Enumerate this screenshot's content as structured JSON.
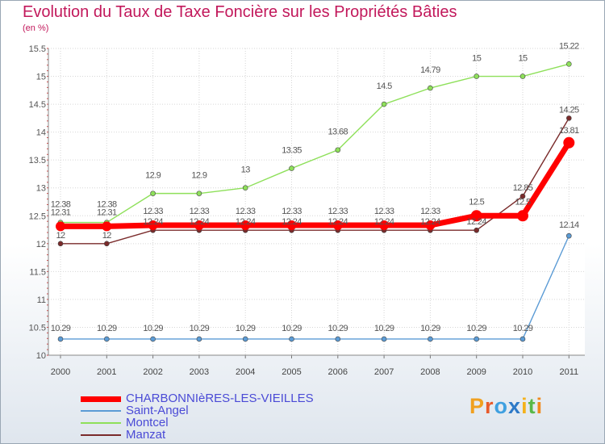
{
  "header": {
    "title": "Evolution du Taux de Taxe Foncière sur les Propriétés Bâties",
    "unit": "(en %)"
  },
  "logo": {
    "text": "Proxiti"
  },
  "chart_data": {
    "type": "line",
    "title": "Evolution du Taux de Taxe Foncière sur les Propriétés Bâties",
    "ylabel": "(en %)",
    "xlabel": "",
    "x": [
      "2000",
      "2001",
      "2002",
      "2003",
      "2004",
      "2005",
      "2006",
      "2007",
      "2008",
      "2009",
      "2010",
      "2011"
    ],
    "ylim": [
      10,
      15.5
    ],
    "yticks": [
      "10",
      "10.5",
      "11",
      "11.5",
      "12",
      "12.5",
      "13",
      "13.5",
      "14",
      "14.5",
      "15",
      "15.5"
    ],
    "grid": true,
    "legend_position": "bottom-left",
    "series": [
      {
        "name": "CHARBONNIèRES-LES-VIEILLES",
        "color": "#ff0000",
        "values": [
          12.31,
          12.31,
          12.33,
          12.33,
          12.33,
          12.33,
          12.33,
          12.33,
          12.33,
          12.5,
          12.5,
          13.81
        ],
        "labels": [
          "12.31",
          "12.31",
          "12.33",
          "12.33",
          "12.33",
          "12.33",
          "12.33",
          "12.33",
          "12.33",
          "12.5",
          "12.5",
          "13.81"
        ]
      },
      {
        "name": "Saint-Angel",
        "color": "#5b9bd5",
        "values": [
          10.29,
          10.29,
          10.29,
          10.29,
          10.29,
          10.29,
          10.29,
          10.29,
          10.29,
          10.29,
          10.29,
          12.14
        ],
        "labels": [
          "10.29",
          "10.29",
          "10.29",
          "10.29",
          "10.29",
          "10.29",
          "10.29",
          "10.29",
          "10.29",
          "10.29",
          "10.29",
          "12.14"
        ]
      },
      {
        "name": "Montcel",
        "color": "#8ee05a",
        "values": [
          12.38,
          12.38,
          12.9,
          12.9,
          13,
          13.35,
          13.68,
          14.5,
          14.79,
          15,
          15,
          15.22
        ],
        "labels": [
          "12.38",
          "12.38",
          "12.9",
          "12.9",
          "13",
          "13.35",
          "13.68",
          "14.5",
          "14.79",
          "15",
          "15",
          "15.22"
        ]
      },
      {
        "name": "Manzat",
        "color": "#7a2b2b",
        "values": [
          12,
          12,
          12.24,
          12.24,
          12.24,
          12.24,
          12.24,
          12.24,
          12.24,
          12.24,
          12.85,
          14.25
        ],
        "labels": [
          "12",
          "12",
          "12.24",
          "12.24",
          "12.24",
          "12.24",
          "12.24",
          "12.24",
          "12.24",
          "12.24",
          "12.85",
          "14.25"
        ]
      }
    ]
  }
}
